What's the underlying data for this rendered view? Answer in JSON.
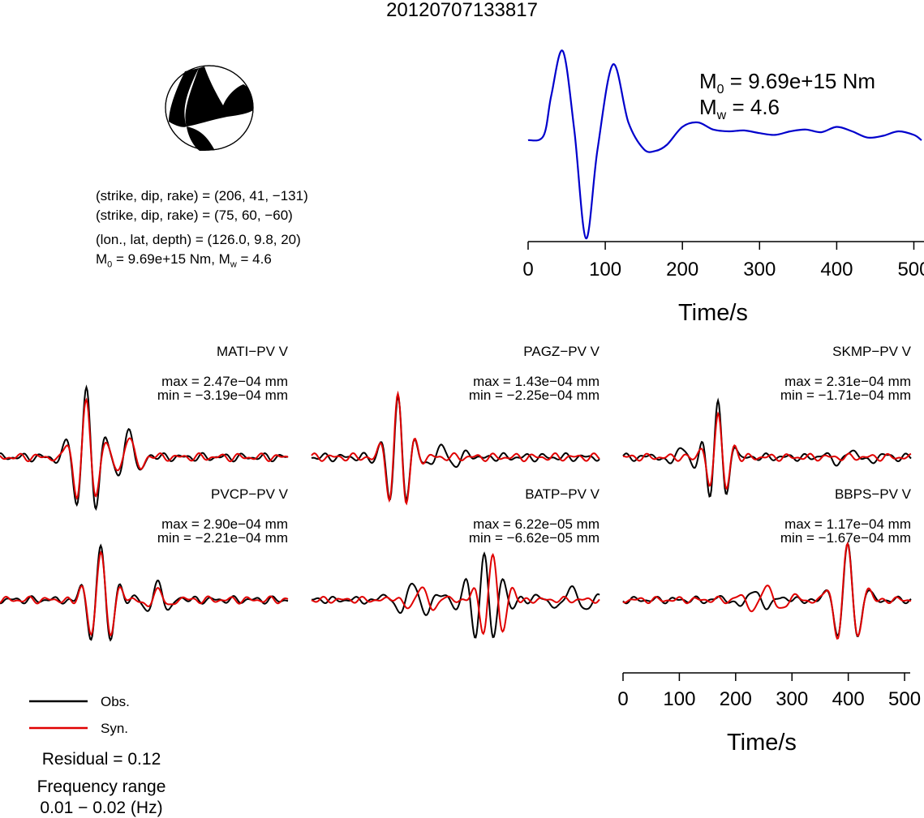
{
  "title": "20120707133817",
  "focal_mechanism": {
    "plane1": "(strike, dip, rake) = (206, 41, −131)",
    "plane2": "(strike, dip, rake) = (75, 60, −60)",
    "location": "(lon., lat, depth) = (126.0, 9.8, 20)",
    "moment_line_m": "M",
    "moment_line_sub0": "0",
    "moment_line_mid": " = 9.69e+15 Nm, M",
    "moment_line_subw": "w",
    "moment_line_end": " = 4.6"
  },
  "stf_labels": {
    "m0_prefix": "M",
    "m0_sub": "0",
    "m0_value": " = 9.69e+15 Nm",
    "mw_prefix": "M",
    "mw_sub": "w",
    "mw_value": " = 4.6"
  },
  "stations": [
    {
      "name": "MATI−PV V",
      "max": "max = 2.47e−04 mm",
      "min": "min = −3.19e−04 mm"
    },
    {
      "name": "PAGZ−PV V",
      "max": "max = 1.43e−04 mm",
      "min": "min = −2.25e−04 mm"
    },
    {
      "name": "SKMP−PV V",
      "max": "max = 2.31e−04 mm",
      "min": "min = −1.71e−04 mm"
    },
    {
      "name": "PVCP−PV V",
      "max": "max = 2.90e−04 mm",
      "min": "min = −2.21e−04 mm"
    },
    {
      "name": "BATP−PV V",
      "max": "max = 6.22e−05 mm",
      "min": "min = −6.62e−05 mm"
    },
    {
      "name": "BBPS−PV V",
      "max": "max = 1.17e−04 mm",
      "min": "min = −1.67e−04 mm"
    }
  ],
  "legend": {
    "obs": "Obs.",
    "syn": "Syn."
  },
  "residual": "Residual = 0.12",
  "frequency_title": "Frequency range",
  "frequency_value": "0.01 − 0.02 (Hz)",
  "colors": {
    "obs": "#000000",
    "syn": "#e00000",
    "stf": "#0000cc"
  },
  "chart_data": [
    {
      "type": "line",
      "series": [
        {
          "x": [
            0,
            20,
            30,
            45,
            60,
            75,
            90,
            110,
            130,
            150,
            165,
            180,
            200,
            220,
            240,
            260,
            280,
            300,
            320,
            340,
            360,
            380,
            400,
            420,
            440,
            460,
            480,
            500,
            510
          ],
          "values": [
            0,
            0.05,
            0.5,
            1.0,
            0.1,
            -1.1,
            -0.1,
            0.85,
            0.2,
            -0.1,
            -0.12,
            -0.05,
            0.15,
            0.2,
            0.12,
            0.1,
            0.11,
            0.08,
            0.06,
            0.1,
            0.12,
            0.09,
            0.15,
            0.1,
            0.03,
            0.05,
            0.1,
            0.06,
            0.0
          ]
        }
      ],
      "xlabel": "Time/s",
      "xticks": [
        0,
        100,
        200,
        300,
        400,
        500
      ],
      "xlim": [
        0,
        510
      ]
    },
    {
      "type": "line",
      "stations": [
        "MATI−PV V",
        "PAGZ−PV V",
        "SKMP−PV V",
        "PVCP−PV V",
        "BATP−PV V",
        "BBPS−PV V"
      ],
      "series": [
        {
          "name": "Obs."
        },
        {
          "name": "Syn."
        }
      ],
      "xlabel": "Time/s",
      "xticks": [
        0,
        100,
        200,
        300,
        400,
        500
      ],
      "xlim": [
        0,
        510
      ]
    }
  ]
}
